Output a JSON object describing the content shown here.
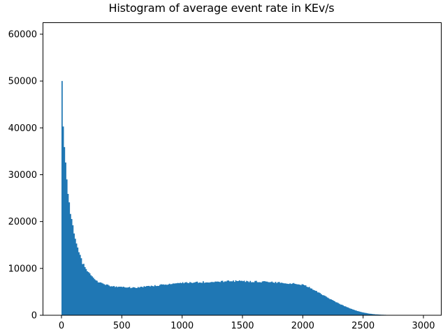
{
  "chart_data": {
    "type": "bar",
    "title": "Histogram of average event rate in KEv/s",
    "xlabel": "",
    "ylabel": "",
    "xlim": [
      -160,
      3150
    ],
    "ylim": [
      0,
      63000
    ],
    "xticks": [
      0,
      500,
      1000,
      1500,
      2000,
      2500,
      3000
    ],
    "yticks": [
      0,
      10000,
      20000,
      30000,
      40000,
      50000,
      60000
    ],
    "grid": false,
    "legend": null,
    "bar_color": "#1f77b4",
    "bin_width": 10,
    "bin_start": 0,
    "anchor_points": {
      "x": [
        0,
        10,
        20,
        30,
        40,
        50,
        60,
        80,
        100,
        125,
        150,
        175,
        200,
        250,
        300,
        350,
        400,
        450,
        500,
        600,
        700,
        800,
        900,
        1000,
        1100,
        1200,
        1300,
        1400,
        1500,
        1600,
        1700,
        1800,
        1900,
        2000,
        2050,
        2100,
        2150,
        2200,
        2250,
        2300,
        2350,
        2400,
        2450,
        2500,
        2550,
        2600,
        2650,
        2700,
        2800,
        2900,
        2950,
        3000
      ],
      "y": [
        50000,
        40300,
        35900,
        32600,
        29000,
        25900,
        24100,
        21000,
        18200,
        15500,
        13000,
        11200,
        10000,
        8300,
        7200,
        6600,
        6300,
        6100,
        6000,
        5900,
        6100,
        6400,
        6700,
        6900,
        7000,
        7100,
        7200,
        7300,
        7300,
        7200,
        7100,
        7000,
        6800,
        6500,
        6000,
        5300,
        4600,
        3900,
        3200,
        2500,
        1900,
        1400,
        950,
        600,
        350,
        200,
        120,
        80,
        50,
        30,
        10,
        0
      ]
    }
  }
}
